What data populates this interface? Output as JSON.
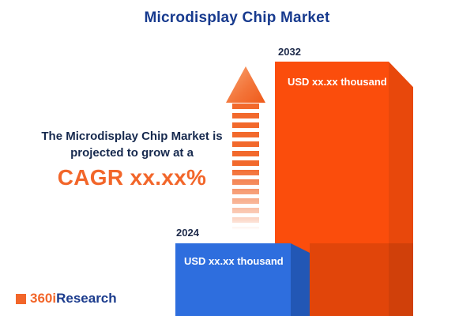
{
  "title": "Microdisplay Chip Market",
  "description": {
    "line1": "The Microdisplay Chip Market is",
    "line2": "projected to grow at a",
    "cagr": "CAGR xx.xx%"
  },
  "bars": [
    {
      "year": "2024",
      "value_label": "USD xx.xx thousand",
      "color": "#2e6ede"
    },
    {
      "year": "2032",
      "value_label": "USD xx.xx thousand",
      "color": "#fb4d0c"
    }
  ],
  "logo": {
    "prefix": "360i",
    "suffix": "Research"
  },
  "colors": {
    "title_navy": "#173a8e",
    "accent_orange": "#f2662a",
    "bar_blue": "#2e6ede",
    "bar_orange": "#fb4d0c"
  },
  "chart_data": {
    "type": "bar",
    "categories": [
      "2024",
      "2032"
    ],
    "values": [
      "xx.xx",
      "xx.xx"
    ],
    "value_unit": "USD thousand",
    "value_labels": [
      "USD xx.xx thousand",
      "USD xx.xx thousand"
    ],
    "title": "Microdisplay Chip Market",
    "annotations": [
      "The Microdisplay Chip Market is projected to grow at a CAGR xx.xx%"
    ],
    "legend": null,
    "grid": false,
    "series_colors": [
      "#2e6ede",
      "#fb4d0c"
    ]
  }
}
